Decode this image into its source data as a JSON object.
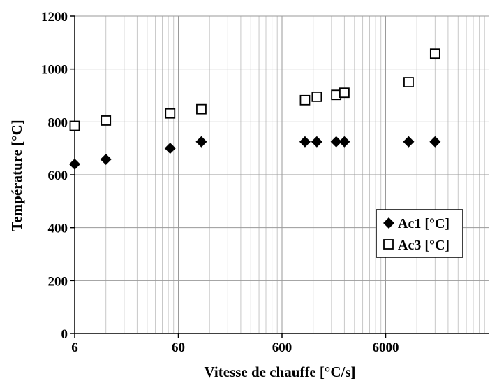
{
  "chart_data": {
    "type": "scatter",
    "xlabel": "Vitesse de chauffe [°C/s]",
    "ylabel": "Température [°C]",
    "xscale": "log",
    "xlim": [
      6,
      60000
    ],
    "ylim": [
      0,
      1200
    ],
    "xticks": [
      6,
      60,
      600,
      6000
    ],
    "xtick_labels": [
      "6",
      "60",
      "600",
      "6000"
    ],
    "yticks": [
      0,
      200,
      400,
      600,
      800,
      1000,
      1200
    ],
    "ytick_labels": [
      "0",
      "200",
      "400",
      "600",
      "800",
      "1000",
      "1200"
    ],
    "grid": true,
    "legend": "right",
    "series": [
      {
        "name": "Ac1 [°C]",
        "marker": "filled-diamond",
        "color": "#000000",
        "x": [
          6,
          12,
          50,
          100,
          1000,
          1300,
          2000,
          2400,
          10000,
          18000
        ],
        "y": [
          640,
          658,
          700,
          725,
          725,
          725,
          725,
          725,
          725,
          725
        ]
      },
      {
        "name": "Ac3 [°C]",
        "marker": "open-square",
        "color": "#000000",
        "x": [
          6,
          12,
          50,
          100,
          1000,
          1300,
          2000,
          2400,
          10000,
          18000
        ],
        "y": [
          785,
          805,
          832,
          848,
          882,
          895,
          902,
          910,
          950,
          1058
        ]
      }
    ]
  }
}
